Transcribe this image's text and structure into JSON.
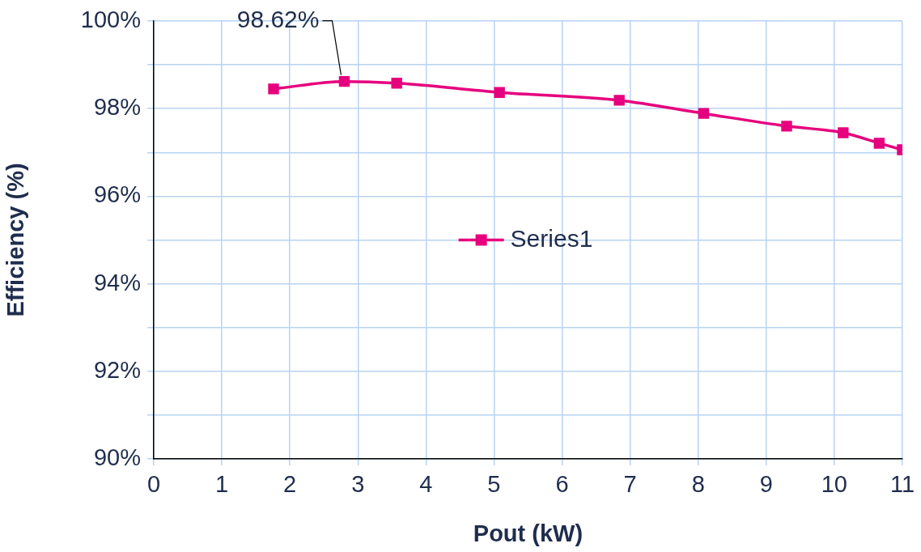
{
  "chart_data": {
    "type": "line",
    "xlabel": "Pout (kW)",
    "ylabel": "Efficiency (%)",
    "x": [
      1.76,
      2.8,
      3.57,
      5.08,
      6.84,
      8.08,
      9.3,
      10.13,
      10.66,
      11.0
    ],
    "series": [
      {
        "name": "Series1",
        "color": "#e6007e",
        "values": [
          98.45,
          98.62,
          98.58,
          98.37,
          98.19,
          97.89,
          97.6,
          97.45,
          97.21,
          97.06
        ],
        "value_labels": [
          null,
          "98.62%",
          null,
          null,
          null,
          null,
          null,
          null,
          null,
          null
        ]
      }
    ],
    "xlim": [
      0,
      11
    ],
    "xticks": [
      0,
      1,
      2,
      3,
      4,
      5,
      6,
      7,
      8,
      9,
      10,
      11
    ],
    "ylim": [
      90,
      100
    ],
    "yticks": [
      {
        "value": 90,
        "label": "90%"
      },
      {
        "value": 91,
        "label": null
      },
      {
        "value": 92,
        "label": "92%"
      },
      {
        "value": 93,
        "label": null
      },
      {
        "value": 94,
        "label": "94%"
      },
      {
        "value": 95,
        "label": null
      },
      {
        "value": 96,
        "label": "96%"
      },
      {
        "value": 97,
        "label": null
      },
      {
        "value": 98,
        "label": "98%"
      },
      {
        "value": 99,
        "label": null
      },
      {
        "value": 100,
        "label": "100%"
      }
    ],
    "grid": true,
    "legend": "center",
    "marker": "square",
    "line_style": "solid"
  }
}
